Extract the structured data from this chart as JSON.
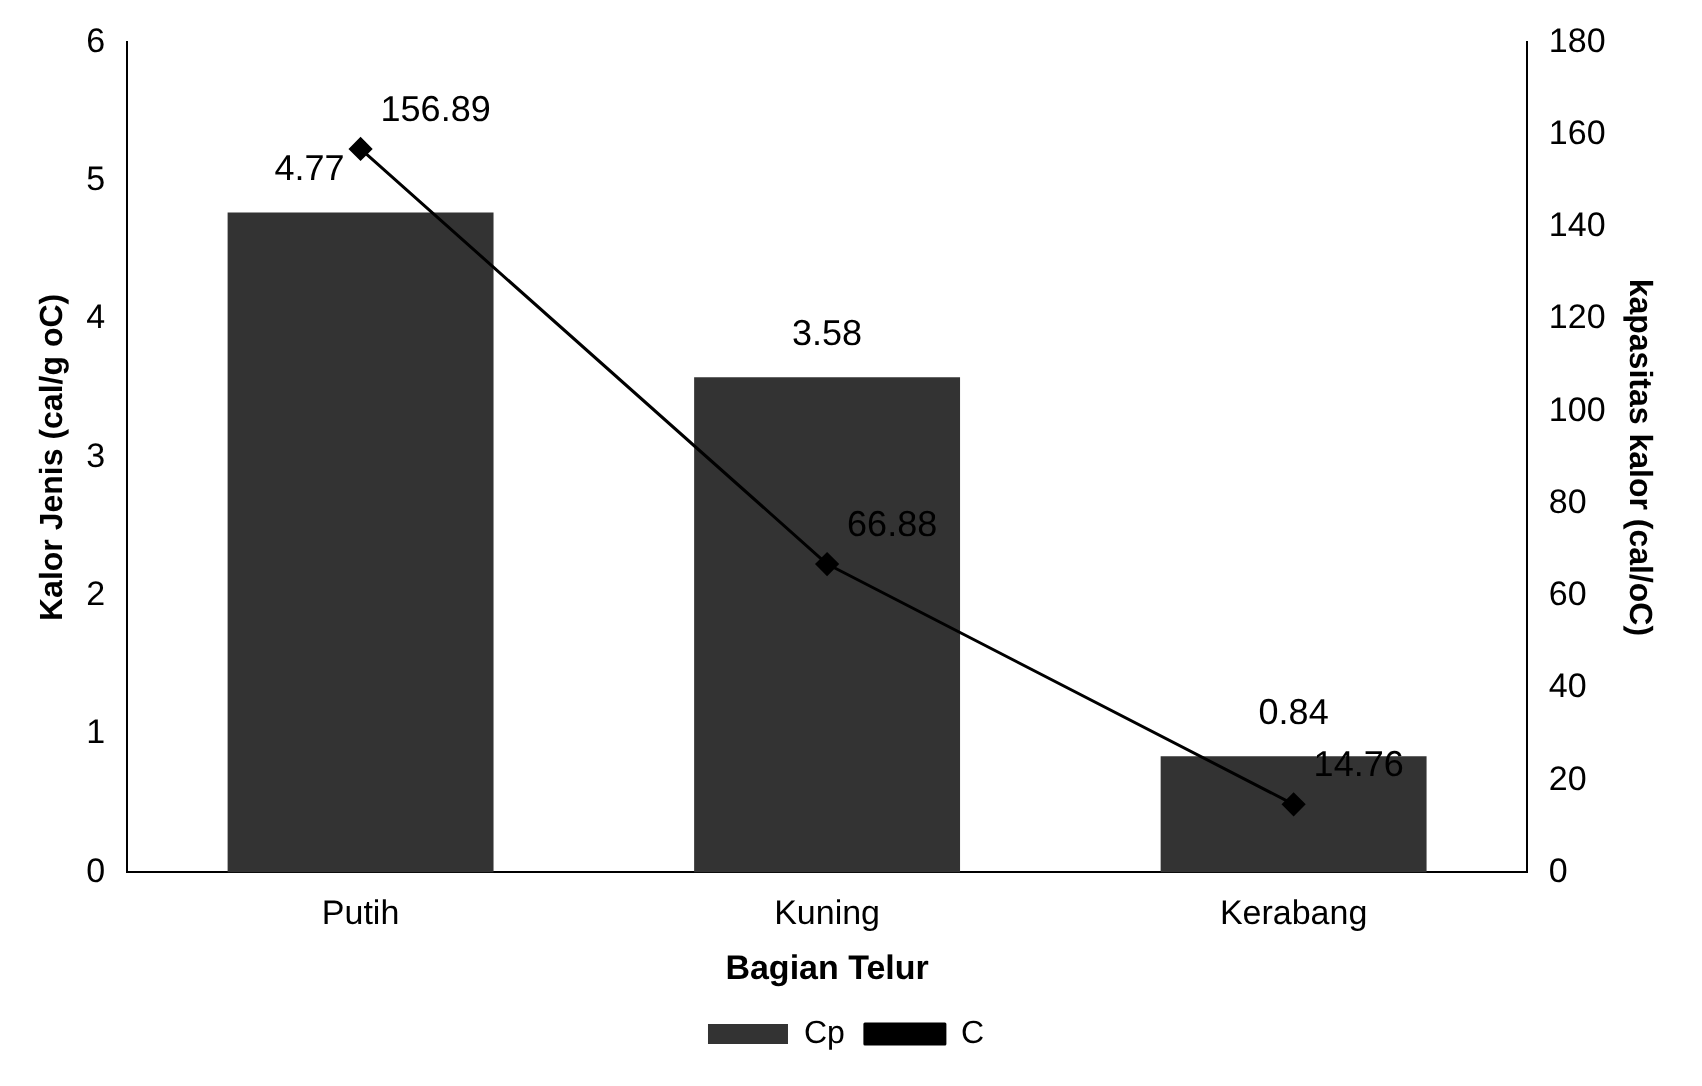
{
  "chart_data": {
    "type": "bar",
    "xlabel": "Bagian Telur",
    "ylabel": "Kalor Jenis (cal/g oC)",
    "y2label": "kapasitas kalor (cal/oC)",
    "categories": [
      "Putih",
      "Kuning",
      "Kerabang"
    ],
    "series": [
      {
        "name": "Cp",
        "color": "#333333",
        "values": [
          4.77,
          3.58,
          0.84
        ]
      },
      {
        "name": "C",
        "type": "line",
        "axis": "y2",
        "color": "#000000",
        "marker": "diamond",
        "values": [
          156.89,
          66.88,
          14.76
        ]
      }
    ],
    "ylim": [
      0,
      6
    ],
    "yticks": [
      0,
      1,
      2,
      3,
      4,
      5,
      6
    ],
    "y2lim": [
      0,
      180
    ],
    "y2ticks": [
      0,
      20,
      40,
      60,
      80,
      100,
      120,
      140,
      160,
      180
    ],
    "data_labels": true,
    "legend": "bottom",
    "grid": false
  }
}
